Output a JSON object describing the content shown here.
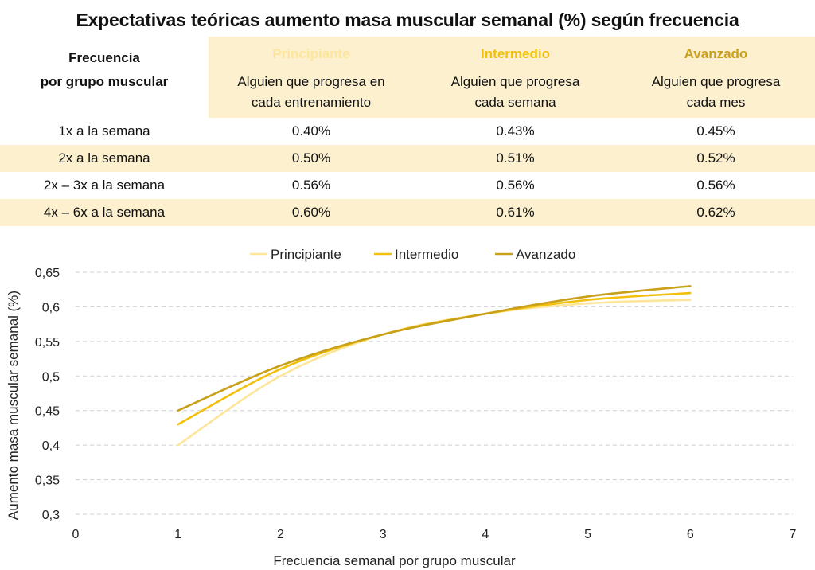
{
  "title": "Expectativas teóricas aumento masa muscular semanal (%) según frecuencia",
  "table": {
    "row_header": [
      "Frecuencia",
      "por grupo muscular"
    ],
    "levels": [
      {
        "name": "Principiante",
        "color": "#fde59a",
        "desc": [
          "Alguien que progresa en",
          "cada entrenamiento"
        ]
      },
      {
        "name": "Intermedio",
        "color": "#f2c00c",
        "desc": [
          "Alguien que progresa",
          "cada semana"
        ]
      },
      {
        "name": "Avanzado",
        "color": "#c9a01a",
        "desc": [
          "Alguien que progresa",
          "cada mes"
        ]
      }
    ],
    "rows": [
      {
        "label": "1x a la semana",
        "values": [
          "0.40%",
          "0.43%",
          "0.45%"
        ]
      },
      {
        "label": "2x a la semana",
        "values": [
          "0.50%",
          "0.51%",
          "0.52%"
        ]
      },
      {
        "label": "2x – 3x a la semana",
        "values": [
          "0.56%",
          "0.56%",
          "0.56%"
        ]
      },
      {
        "label": "4x – 6x a la semana",
        "values": [
          "0.60%",
          "0.61%",
          "0.62%"
        ]
      }
    ]
  },
  "chart_data": {
    "type": "line",
    "xlabel": "Frecuencia semanal por grupo muscular",
    "ylabel": "Aumento masa muscular semanal (%)",
    "xlim": [
      0,
      7
    ],
    "ylim": [
      0.3,
      0.65
    ],
    "xticks": [
      "0",
      "1",
      "2",
      "3",
      "4",
      "5",
      "6",
      "7"
    ],
    "yticks": [
      "0,3",
      "0,35",
      "0,4",
      "0,45",
      "0,5",
      "0,55",
      "0,6",
      "0,65"
    ],
    "grid": true,
    "legend": "top-center",
    "x": [
      1,
      2,
      3,
      4,
      5,
      6
    ],
    "series": [
      {
        "name": "Principiante",
        "color": "#fde59a",
        "values": [
          0.4,
          0.5,
          0.56,
          0.59,
          0.605,
          0.61
        ]
      },
      {
        "name": "Intermedio",
        "color": "#f2c00c",
        "values": [
          0.43,
          0.51,
          0.56,
          0.59,
          0.61,
          0.62
        ]
      },
      {
        "name": "Avanzado",
        "color": "#c9a01a",
        "values": [
          0.45,
          0.515,
          0.56,
          0.59,
          0.615,
          0.63
        ]
      }
    ]
  }
}
